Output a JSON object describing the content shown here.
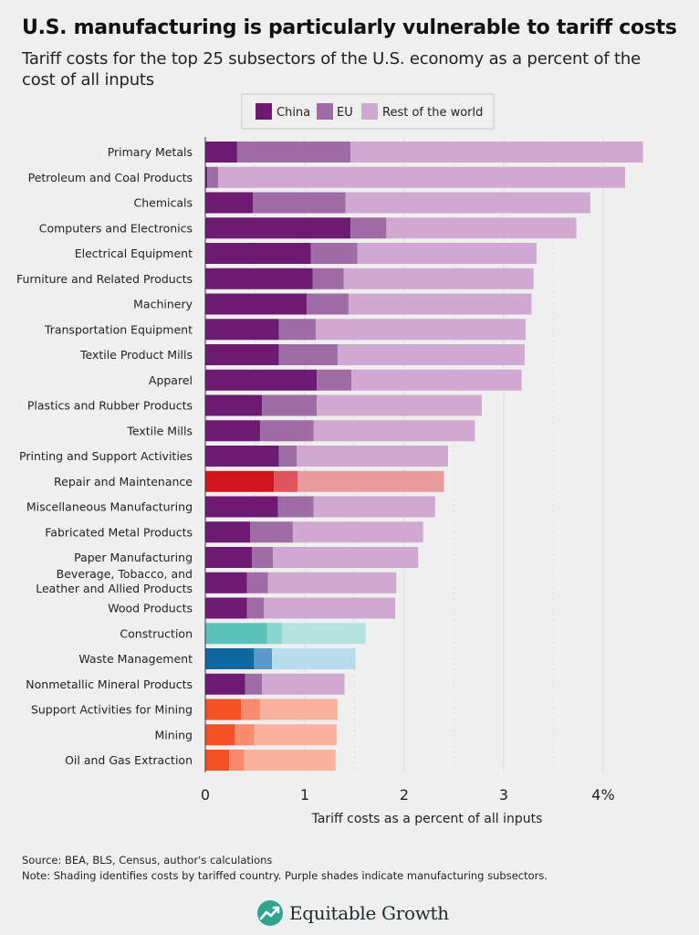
{
  "title": "U.S. manufacturing is particularly vulnerable to tariff costs",
  "subtitle": "Tariff costs for the top 25 subsectors of the U.S. economy as a percent of the cost of all inputs",
  "footer": {
    "source": "Source: BEA, BLS, Census, author's calculations",
    "note": "Note: Shading identifies costs by tariffed country. Purple shades indicate manufacturing subsectors."
  },
  "logo": {
    "text": "Equitable Growth"
  },
  "chart_data": {
    "type": "bar",
    "orientation": "horizontal",
    "stacked": true,
    "xlabel": "Tariff costs as a percent of all inputs",
    "xlim": [
      0,
      4.4
    ],
    "xticks": [
      0,
      1,
      2,
      3,
      4
    ],
    "xtick_labels": [
      "0",
      "1",
      "2",
      "3",
      "4%"
    ],
    "legend_position": "top-center",
    "legend": [
      "China",
      "EU",
      "Rest of the world"
    ],
    "palettes": {
      "purple": [
        "#6c1a72",
        "#a06ca6",
        "#cfa9d0"
      ],
      "red": [
        "#d0151f",
        "#e0545c",
        "#e89a9c"
      ],
      "teal": [
        "#5bc2bb",
        "#8ad5cf",
        "#b5e2de"
      ],
      "blue": [
        "#0f67a0",
        "#5b9ac8",
        "#b8dcec"
      ],
      "orange": [
        "#f45124",
        "#f88b6e",
        "#f8b29d"
      ]
    },
    "categories": [
      "Primary Metals",
      "Petroleum and Coal Products",
      "Chemicals",
      "Computers and Electronics",
      "Electrical Equipment",
      "Furniture and Related Products",
      "Machinery",
      "Transportation Equipment",
      "Textile Product Mills",
      "Apparel",
      "Plastics and Rubber Products",
      "Textile Mills",
      "Printing and Support Activities",
      "Repair and Maintenance",
      "Miscellaneous Manufacturing",
      "Fabricated Metal Products",
      "Paper Manufacturing",
      "Beverage, Tobacco, and\nLeather and Allied Products",
      "Wood Products",
      "Construction",
      "Waste Management",
      "Nonmetallic Mineral Products",
      "Support Activities for Mining",
      "Mining",
      "Oil and Gas Extraction"
    ],
    "palette_by_category": [
      "purple",
      "purple",
      "purple",
      "purple",
      "purple",
      "purple",
      "purple",
      "purple",
      "purple",
      "purple",
      "purple",
      "purple",
      "purple",
      "red",
      "purple",
      "purple",
      "purple",
      "purple",
      "purple",
      "teal",
      "blue",
      "purple",
      "orange",
      "orange",
      "orange"
    ],
    "series": [
      {
        "name": "China",
        "values": [
          0.32,
          0.02,
          0.48,
          1.46,
          1.06,
          1.08,
          1.02,
          0.74,
          0.74,
          1.12,
          0.57,
          0.55,
          0.74,
          0.69,
          0.73,
          0.45,
          0.47,
          0.42,
          0.42,
          0.62,
          0.49,
          0.4,
          0.36,
          0.3,
          0.24
        ]
      },
      {
        "name": "EU",
        "values": [
          1.14,
          0.11,
          0.93,
          0.36,
          0.47,
          0.31,
          0.42,
          0.37,
          0.59,
          0.35,
          0.55,
          0.54,
          0.18,
          0.24,
          0.36,
          0.43,
          0.21,
          0.21,
          0.17,
          0.15,
          0.18,
          0.17,
          0.19,
          0.19,
          0.15
        ]
      },
      {
        "name": "Rest of the world",
        "values": [
          2.94,
          4.09,
          2.46,
          1.91,
          1.8,
          1.91,
          1.84,
          2.11,
          1.88,
          1.71,
          1.66,
          1.62,
          1.52,
          1.47,
          1.22,
          1.31,
          1.46,
          1.29,
          1.32,
          0.84,
          0.84,
          0.83,
          0.78,
          0.83,
          0.92
        ]
      }
    ]
  }
}
